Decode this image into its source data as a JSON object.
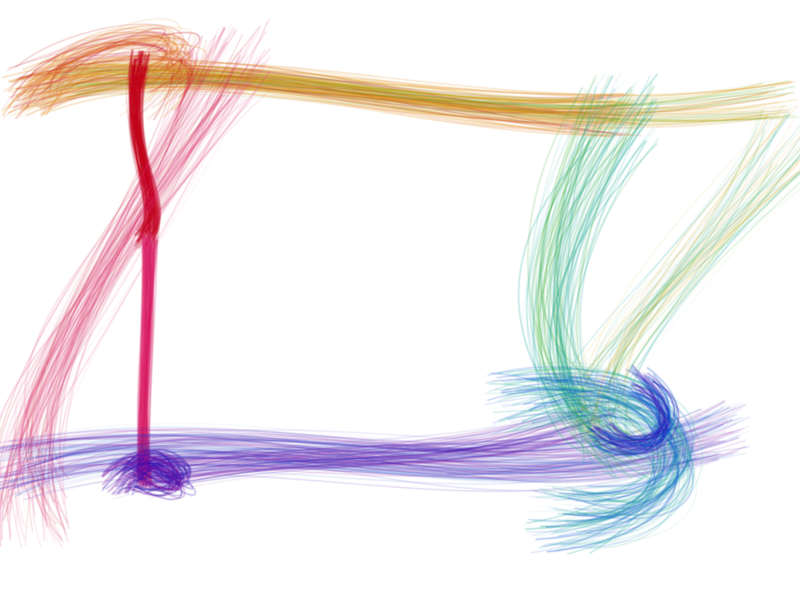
{
  "artwork": {
    "background": "#ffffff",
    "palette": {
      "red": "#c0001a",
      "orange": "#e07a10",
      "yellow": "#d8a000",
      "green": "#2aa820",
      "teal": "#10a090",
      "blue": "#0050d0",
      "indigo": "#3010b0",
      "violet": "#8010a0",
      "magenta": "#d0105a",
      "pink": "#e03070"
    }
  }
}
